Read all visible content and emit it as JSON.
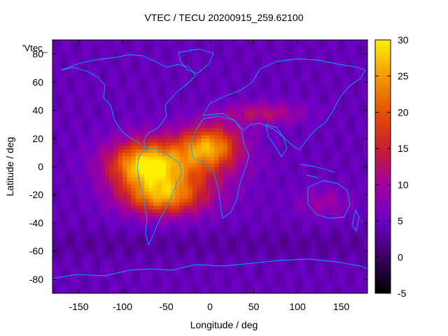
{
  "chart_data": {
    "type": "heatmap",
    "title": "VTEC / TECU 20200915_259.62100",
    "xlabel": "Longitude / deg",
    "ylabel": "Latitude / deg",
    "series_label": "'Vtec_",
    "xlim": [
      -180,
      180
    ],
    "ylim": [
      -90,
      90
    ],
    "xticks": [
      -150,
      -100,
      -50,
      0,
      50,
      100,
      150
    ],
    "yticks": [
      -80,
      -60,
      -40,
      -20,
      0,
      20,
      40,
      60,
      80
    ],
    "colorbar": {
      "label_values": [
        -5,
        0,
        5,
        10,
        15,
        20,
        25,
        30
      ],
      "range": [
        -5,
        30
      ],
      "colormap_stops": [
        "#000000",
        "#3b0060",
        "#6a00c4",
        "#a000a0",
        "#c81e32",
        "#e65000",
        "#f59a00",
        "#fff000"
      ]
    },
    "background_vtec": 4.5,
    "features": [
      {
        "name": "equatorial-anomaly-americas",
        "lon": -75,
        "lat": 2,
        "peak_vtec": 27
      },
      {
        "name": "equatorial-anomaly-atlantic",
        "lon": 0,
        "lat": 15,
        "peak_vtec": 27
      },
      {
        "name": "southern-crest",
        "lon": -55,
        "lat": -22,
        "peak_vtec": 24
      },
      {
        "name": "northern-band",
        "lon": 60,
        "lat": 38,
        "peak_vtec": 15
      }
    ]
  }
}
